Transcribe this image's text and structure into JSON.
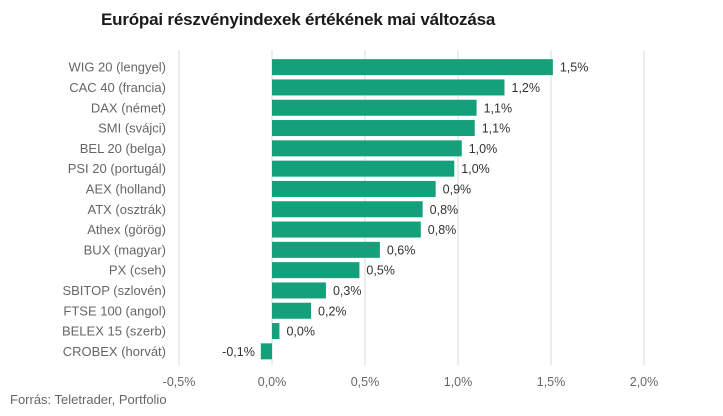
{
  "chart_data": {
    "type": "bar",
    "orientation": "horizontal",
    "title": "Európai részvényindexek értékének mai változása",
    "source": "Forrás: Teletrader, Portfolio",
    "categories": [
      "WIG 20 (lengyel)",
      "CAC 40 (francia)",
      "DAX (német)",
      "SMI (svájci)",
      "BEL 20 (belga)",
      "PSI 20 (portugál)",
      "AEX (holland)",
      "ATX (osztrák)",
      "Athex (görög)",
      "BUX (magyar)",
      "PX (cseh)",
      "SBITOP (szlovén)",
      "FTSE 100 (angol)",
      "BELEX 15 (szerb)",
      "CROBEX (horvát)"
    ],
    "values": [
      1.51,
      1.25,
      1.1,
      1.09,
      1.02,
      0.98,
      0.88,
      0.81,
      0.8,
      0.58,
      0.47,
      0.29,
      0.21,
      0.04,
      -0.06
    ],
    "labels": [
      "1,5%",
      "1,2%",
      "1,1%",
      "1,1%",
      "1,0%",
      "1,0%",
      "0,9%",
      "0,8%",
      "0,8%",
      "0,6%",
      "0,5%",
      "0,3%",
      "0,2%",
      "0,0%",
      "-0,1%"
    ],
    "xlim": [
      -0.5,
      2.0
    ],
    "xticks": [
      -0.5,
      0.0,
      0.5,
      1.0,
      1.5,
      2.0
    ],
    "xtick_labels": [
      "-0,5%",
      "0,0%",
      "0,5%",
      "1,0%",
      "1,5%",
      "2,0%"
    ],
    "grid": true,
    "bar_color": "#14a07a",
    "grid_color": "#d9d9d9"
  }
}
